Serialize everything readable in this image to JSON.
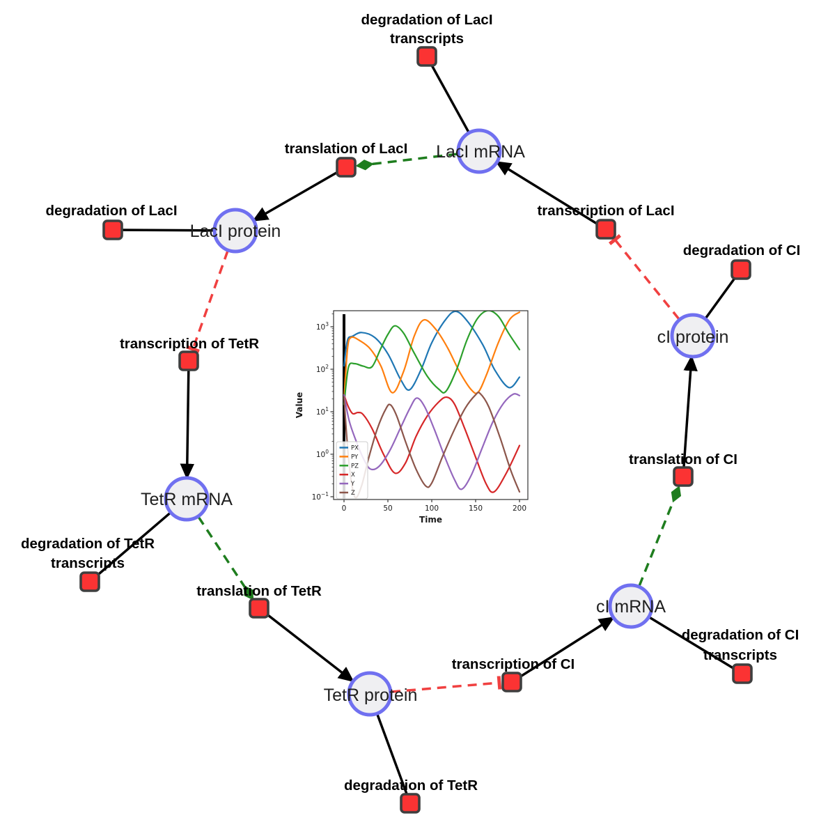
{
  "colors": {
    "species_fill": "#efeff2",
    "species_border": "#7070f0",
    "reaction_fill": "#fb3333",
    "reaction_border": "#3f3f3f",
    "plain_edge": "#000000",
    "activation_edge": "#1e7d1e",
    "inhibition_edge": "#f04040"
  },
  "network": {
    "species": {
      "laci_mrna": {
        "label": "LacI mRNA"
      },
      "laci_protein": {
        "label": "LacI protein"
      },
      "tetr_mrna": {
        "label": "TetR mRNA"
      },
      "tetr_protein": {
        "label": "TetR protein"
      },
      "ci_mrna": {
        "label": "cI mRNA"
      },
      "ci_protein": {
        "label": "cI protein"
      }
    },
    "reactions": {
      "degradation_laci_transcripts": {
        "line1": "degradation of LacI",
        "line2": "transcripts"
      },
      "translation_laci": {
        "line1": "translation of LacI"
      },
      "transcription_laci": {
        "line1": "transcription of LacI"
      },
      "degradation_laci": {
        "line1": "degradation of LacI"
      },
      "degradation_ci": {
        "line1": "degradation of CI"
      },
      "transcription_tetr": {
        "line1": "transcription of TetR"
      },
      "degradation_tetr_transcripts": {
        "line1": "degradation of TetR",
        "line2": "transcripts"
      },
      "translation_tetr": {
        "line1": "translation of TetR"
      },
      "degradation_tetr": {
        "line1": "degradation of TetR"
      },
      "transcription_ci": {
        "line1": "transcription of CI"
      },
      "degradation_ci_transcripts": {
        "line1": "degradation of CI",
        "line2": "transcripts"
      },
      "translation_ci": {
        "line1": "translation of CI"
      }
    },
    "edges": [
      {
        "from": "laci_mrna",
        "to": "degradation_laci_transcripts",
        "type": "consumption"
      },
      {
        "from": "laci_mrna",
        "to": "translation_laci",
        "type": "modifier"
      },
      {
        "from": "transcription_laci",
        "to": "laci_mrna",
        "type": "production"
      },
      {
        "from": "translation_laci",
        "to": "laci_protein",
        "type": "production"
      },
      {
        "from": "laci_protein",
        "to": "degradation_laci",
        "type": "consumption"
      },
      {
        "from": "laci_protein",
        "to": "transcription_tetr",
        "type": "inhibition"
      },
      {
        "from": "transcription_tetr",
        "to": "tetr_mrna",
        "type": "production"
      },
      {
        "from": "tetr_mrna",
        "to": "degradation_tetr_transcripts",
        "type": "consumption"
      },
      {
        "from": "tetr_mrna",
        "to": "translation_tetr",
        "type": "modifier"
      },
      {
        "from": "translation_tetr",
        "to": "tetr_protein",
        "type": "production"
      },
      {
        "from": "tetr_protein",
        "to": "degradation_tetr",
        "type": "consumption"
      },
      {
        "from": "tetr_protein",
        "to": "transcription_ci",
        "type": "inhibition"
      },
      {
        "from": "transcription_ci",
        "to": "ci_mrna",
        "type": "production"
      },
      {
        "from": "ci_mrna",
        "to": "degradation_ci_transcripts",
        "type": "consumption"
      },
      {
        "from": "ci_mrna",
        "to": "translation_ci",
        "type": "modifier"
      },
      {
        "from": "translation_ci",
        "to": "ci_protein",
        "type": "production"
      },
      {
        "from": "ci_protein",
        "to": "degradation_ci",
        "type": "consumption"
      },
      {
        "from": "ci_protein",
        "to": "transcription_laci",
        "type": "inhibition"
      }
    ]
  },
  "chart_data": {
    "type": "line",
    "title": "",
    "xlabel": "Time",
    "ylabel": "Value",
    "x_ticks": [
      0,
      50,
      100,
      150,
      200
    ],
    "y_scale": "log",
    "y_tick_exponents": [
      -1,
      0,
      1,
      2,
      3
    ],
    "xlim": [
      -12,
      209
    ],
    "ylim_log10": [
      -1.07,
      3.38
    ],
    "grid": false,
    "legend_position": "lower left",
    "annotations": [
      {
        "type": "vline",
        "t": 0,
        "color": "#000000"
      }
    ],
    "series": [
      {
        "name": "PX",
        "color": "#1f77b4",
        "points": [
          [
            0,
            120
          ],
          [
            4,
            480
          ],
          [
            10,
            600
          ],
          [
            20,
            730
          ],
          [
            35,
            560
          ],
          [
            50,
            230
          ],
          [
            65,
            55
          ],
          [
            75,
            33
          ],
          [
            88,
            100
          ],
          [
            100,
            420
          ],
          [
            115,
            1400
          ],
          [
            127,
            2300
          ],
          [
            140,
            1400
          ],
          [
            158,
            380
          ],
          [
            172,
            95
          ],
          [
            188,
            37
          ],
          [
            200,
            65
          ]
        ]
      },
      {
        "name": "PY",
        "color": "#ff7f0e",
        "points": [
          [
            0,
            20
          ],
          [
            4,
            300
          ],
          [
            8,
            560
          ],
          [
            18,
            470
          ],
          [
            30,
            300
          ],
          [
            42,
            120
          ],
          [
            55,
            28
          ],
          [
            68,
            90
          ],
          [
            80,
            600
          ],
          [
            91,
            1450
          ],
          [
            105,
            850
          ],
          [
            118,
            320
          ],
          [
            132,
            85
          ],
          [
            145,
            33
          ],
          [
            153,
            29
          ],
          [
            163,
            80
          ],
          [
            176,
            430
          ],
          [
            189,
            1500
          ],
          [
            200,
            2200
          ]
        ]
      },
      {
        "name": "PZ",
        "color": "#2ca02c",
        "points": [
          [
            0,
            15
          ],
          [
            5,
            110
          ],
          [
            12,
            135
          ],
          [
            22,
            118
          ],
          [
            32,
            115
          ],
          [
            42,
            310
          ],
          [
            50,
            660
          ],
          [
            58,
            1050
          ],
          [
            68,
            700
          ],
          [
            80,
            240
          ],
          [
            95,
            68
          ],
          [
            108,
            34
          ],
          [
            116,
            30
          ],
          [
            128,
            95
          ],
          [
            140,
            480
          ],
          [
            152,
            1550
          ],
          [
            164,
            2400
          ],
          [
            176,
            1750
          ],
          [
            188,
            680
          ],
          [
            200,
            290
          ]
        ]
      },
      {
        "name": "X",
        "color": "#d62728",
        "points": [
          [
            0,
            25
          ],
          [
            5,
            13
          ],
          [
            10,
            9
          ],
          [
            16,
            9.6
          ],
          [
            22,
            8.5
          ],
          [
            32,
            4
          ],
          [
            45,
            1
          ],
          [
            58,
            0.36
          ],
          [
            70,
            0.62
          ],
          [
            82,
            2.6
          ],
          [
            95,
            8
          ],
          [
            108,
            17
          ],
          [
            117,
            22
          ],
          [
            126,
            15
          ],
          [
            138,
            3.8
          ],
          [
            150,
            0.85
          ],
          [
            162,
            0.2
          ],
          [
            171,
            0.13
          ],
          [
            185,
            0.36
          ],
          [
            200,
            1.6
          ]
        ]
      },
      {
        "name": "Y",
        "color": "#9467bd",
        "points": [
          [
            0,
            25
          ],
          [
            6,
            6
          ],
          [
            14,
            2
          ],
          [
            22,
            0.8
          ],
          [
            30,
            0.45
          ],
          [
            40,
            0.52
          ],
          [
            52,
            1.2
          ],
          [
            64,
            4
          ],
          [
            75,
            12
          ],
          [
            83,
            21
          ],
          [
            92,
            13
          ],
          [
            103,
            3.8
          ],
          [
            115,
            0.85
          ],
          [
            126,
            0.25
          ],
          [
            134,
            0.15
          ],
          [
            145,
            0.32
          ],
          [
            158,
            1.5
          ],
          [
            170,
            6
          ],
          [
            182,
            16
          ],
          [
            193,
            26
          ],
          [
            200,
            24
          ]
        ]
      },
      {
        "name": "Z",
        "color": "#8c564b",
        "points": [
          [
            0,
            22
          ],
          [
            4,
            1.5
          ],
          [
            8,
            0.25
          ],
          [
            13,
            0.095
          ],
          [
            20,
            0.18
          ],
          [
            28,
            0.8
          ],
          [
            38,
            4
          ],
          [
            48,
            12
          ],
          [
            53,
            14.5
          ],
          [
            60,
            8
          ],
          [
            70,
            2
          ],
          [
            82,
            0.45
          ],
          [
            93,
            0.18
          ],
          [
            100,
            0.21
          ],
          [
            112,
            0.85
          ],
          [
            125,
            3.5
          ],
          [
            138,
            12
          ],
          [
            150,
            25
          ],
          [
            155,
            27
          ],
          [
            165,
            13
          ],
          [
            178,
            2.4
          ],
          [
            190,
            0.42
          ],
          [
            200,
            0.13
          ]
        ]
      }
    ]
  }
}
